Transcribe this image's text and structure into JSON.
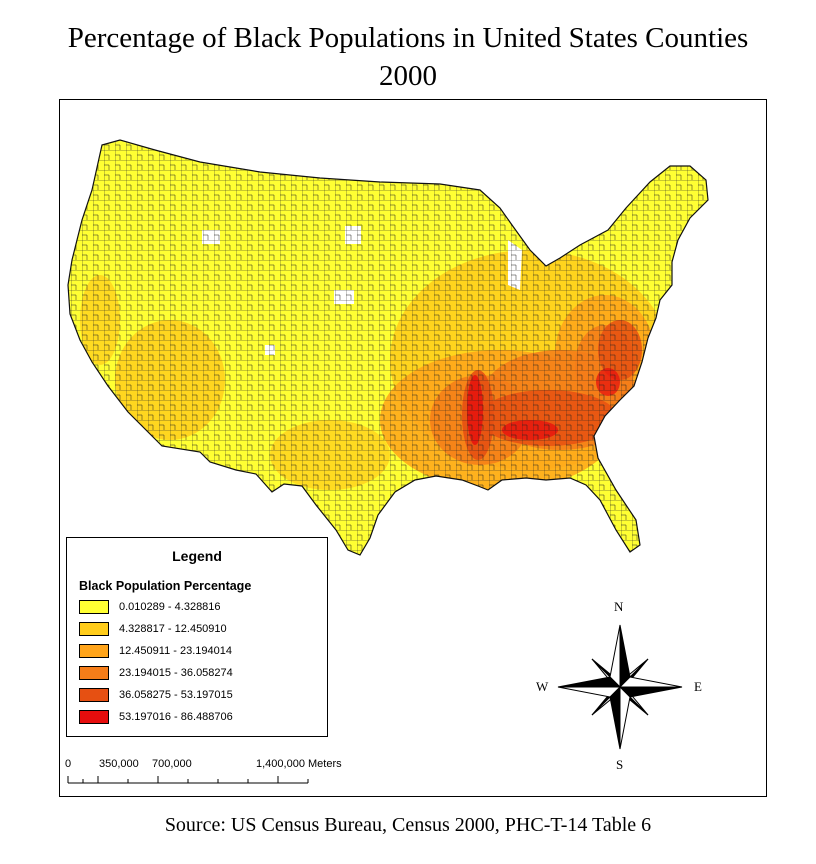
{
  "title_line1": "Percentage of Black Populations in United States Counties",
  "title_line2": "2000",
  "legend": {
    "heading": "Legend",
    "subtitle": "Black Population Percentage",
    "classes": [
      {
        "label": "0.010289 - 4.328816",
        "color": "#ffff33"
      },
      {
        "label": "4.328817 - 12.450910",
        "color": "#ffcc1a"
      },
      {
        "label": "12.450911 - 23.194014",
        "color": "#ffa41a"
      },
      {
        "label": "23.194015 - 36.058274",
        "color": "#f57d19"
      },
      {
        "label": "36.058275 - 53.197015",
        "color": "#e65012"
      },
      {
        "label": "53.197016 - 86.488706",
        "color": "#e60d0d"
      }
    ]
  },
  "scale_bar": {
    "labels": [
      "0",
      "350,000",
      "700,000",
      "1,400,000 Meters"
    ]
  },
  "north_arrow": {
    "n": "N",
    "s": "S",
    "e": "E",
    "w": "W"
  },
  "source": "Source: US Census Bureau, Census 2000, PHC-T-14 Table 6"
}
